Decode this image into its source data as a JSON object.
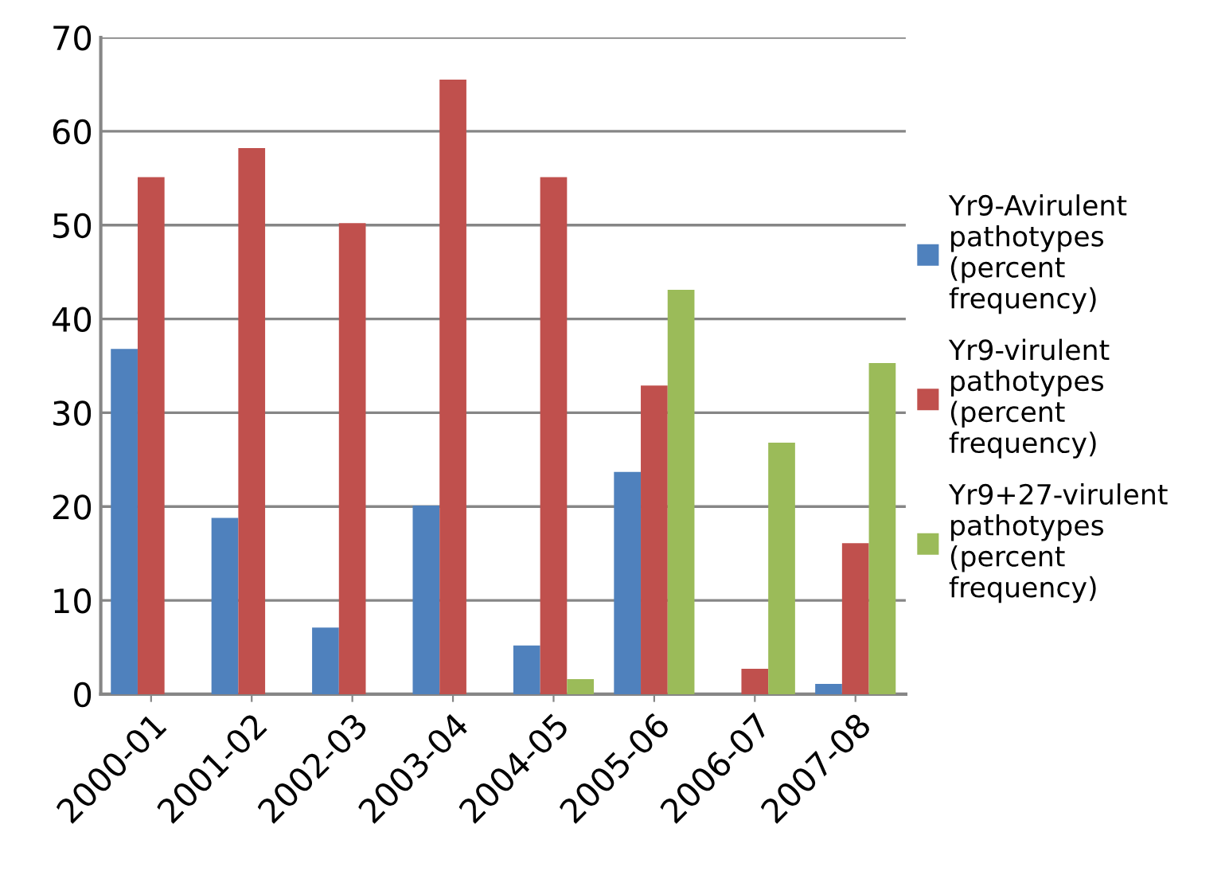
{
  "chart_data": {
    "type": "bar",
    "categories": [
      "2000-01",
      "2001-02",
      "2002-03",
      "2003-04",
      "2004-05",
      "2005-06",
      "2006-07",
      "2007-08"
    ],
    "series": [
      {
        "name": "Yr9-Avirulent pathotypes (percent frequency)",
        "color": "#4f81bd",
        "values": [
          36.8,
          18.8,
          7.1,
          20.1,
          5.2,
          23.7,
          null,
          1.1
        ]
      },
      {
        "name": "Yr9-virulent pathotypes (percent frequency)",
        "color": "#c0504d",
        "values": [
          55.1,
          58.2,
          50.2,
          65.5,
          55.1,
          32.9,
          2.7,
          16.1
        ]
      },
      {
        "name": "Yr9+27-virulent pathotypes (percent frequency)",
        "color": "#9bbb59",
        "values": [
          null,
          null,
          null,
          null,
          1.6,
          43.1,
          26.8,
          35.3
        ]
      }
    ],
    "ylim": [
      0,
      70
    ],
    "yticks": [
      0,
      10,
      20,
      30,
      40,
      50,
      60,
      70
    ],
    "grid": "y",
    "legend": "right"
  }
}
